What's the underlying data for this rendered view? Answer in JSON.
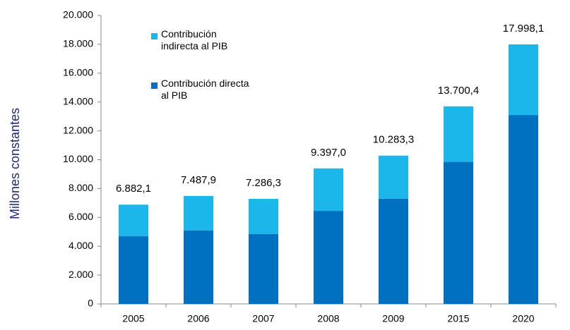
{
  "chart_data": {
    "type": "stacked_bar",
    "y_label": "Millones constantes",
    "categories": [
      "2005",
      "2006",
      "2007",
      "2008",
      "2009",
      "2015",
      "2020"
    ],
    "series": [
      {
        "name": "Contribución directa\nal PIB",
        "color": "#0070c0",
        "values": [
          4700,
          5100,
          4850,
          6450,
          7300,
          9850,
          13100
        ]
      },
      {
        "name": "Contribución\nindirecta al PIB",
        "color": "#1bb7ea",
        "values": [
          2182.1,
          2387.9,
          2436.3,
          2947.0,
          2983.3,
          3850.4,
          4898.1
        ]
      }
    ],
    "totals": [
      6882.1,
      7487.9,
      7286.3,
      9397.0,
      10283.3,
      13700.4,
      17998.1
    ],
    "total_labels": [
      "6.882,1",
      "7.487,9",
      "7.286,3",
      "9.397,0",
      "10.283,3",
      "13.700,4",
      "17.998,1"
    ],
    "ylim": [
      0,
      20000
    ],
    "yticks": [
      0,
      {
        "value": 2000,
        "label": "2.000"
      },
      {
        "value": 4000,
        "label": "4.000"
      },
      {
        "value": 6000,
        "label": "6.000"
      },
      {
        "value": 8000,
        "label": "8.000"
      },
      {
        "value": 10000,
        "label": "10.000"
      },
      {
        "value": 12000,
        "label": "12.000"
      },
      {
        "value": 14000,
        "label": "14.000"
      },
      {
        "value": 16000,
        "label": "16.000"
      },
      {
        "value": 18000,
        "label": "18.000"
      },
      {
        "value": 20000,
        "label": "20.000"
      }
    ]
  }
}
